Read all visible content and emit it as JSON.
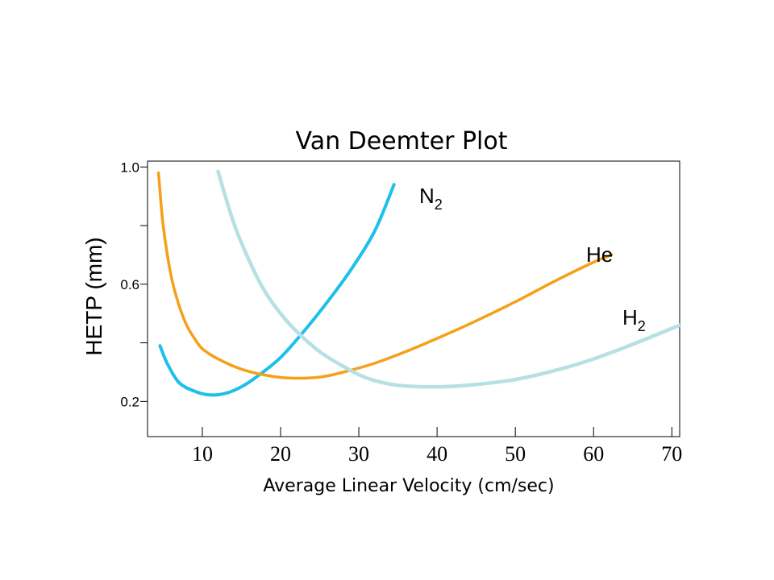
{
  "chart_data": {
    "type": "line",
    "title": "Van Deemter Plot",
    "xlabel": "Average Linear Velocity (cm/sec)",
    "ylabel": "HETP (mm)",
    "xlim": [
      3,
      71
    ],
    "ylim": [
      0.08,
      1.02
    ],
    "x_ticks": [
      10,
      20,
      30,
      40,
      50,
      60,
      70
    ],
    "x_tick_labels": [
      "10",
      "20",
      "30",
      "40",
      "50",
      "60",
      "70"
    ],
    "y_ticks": [
      0.2,
      0.4,
      0.6,
      0.8,
      1.0
    ],
    "y_tick_labels": [
      "0.2",
      "",
      "0.6",
      "",
      "1.0"
    ],
    "grid": false,
    "series": [
      {
        "name": "N",
        "name_sub": "2",
        "color": "#1ec0ea",
        "x": [
          4.6,
          5.5,
          7,
          9,
          11,
          13,
          15,
          17,
          20,
          23,
          26,
          29,
          32,
          34.5
        ],
        "y": [
          0.39,
          0.33,
          0.265,
          0.235,
          0.222,
          0.228,
          0.25,
          0.285,
          0.35,
          0.44,
          0.54,
          0.65,
          0.78,
          0.94
        ]
      },
      {
        "name": "He",
        "name_sub": "",
        "color": "#f5a019",
        "x": [
          4.4,
          5,
          6,
          7,
          8,
          9,
          10,
          12,
          15,
          18,
          21,
          25,
          28,
          32,
          36,
          40,
          45,
          50,
          55,
          60,
          62.3
        ],
        "y": [
          0.98,
          0.8,
          0.63,
          0.53,
          0.46,
          0.415,
          0.38,
          0.345,
          0.31,
          0.29,
          0.28,
          0.283,
          0.3,
          0.33,
          0.37,
          0.415,
          0.475,
          0.54,
          0.61,
          0.675,
          0.7
        ]
      },
      {
        "name": "H",
        "name_sub": "2",
        "color": "#b6e0e4",
        "x": [
          12,
          14,
          16,
          18,
          20,
          22,
          25,
          28,
          31,
          35,
          40,
          45,
          50,
          55,
          60,
          65,
          71
        ],
        "y": [
          0.985,
          0.81,
          0.68,
          0.575,
          0.5,
          0.44,
          0.37,
          0.32,
          0.28,
          0.255,
          0.25,
          0.258,
          0.275,
          0.305,
          0.345,
          0.395,
          0.46
        ]
      }
    ]
  }
}
